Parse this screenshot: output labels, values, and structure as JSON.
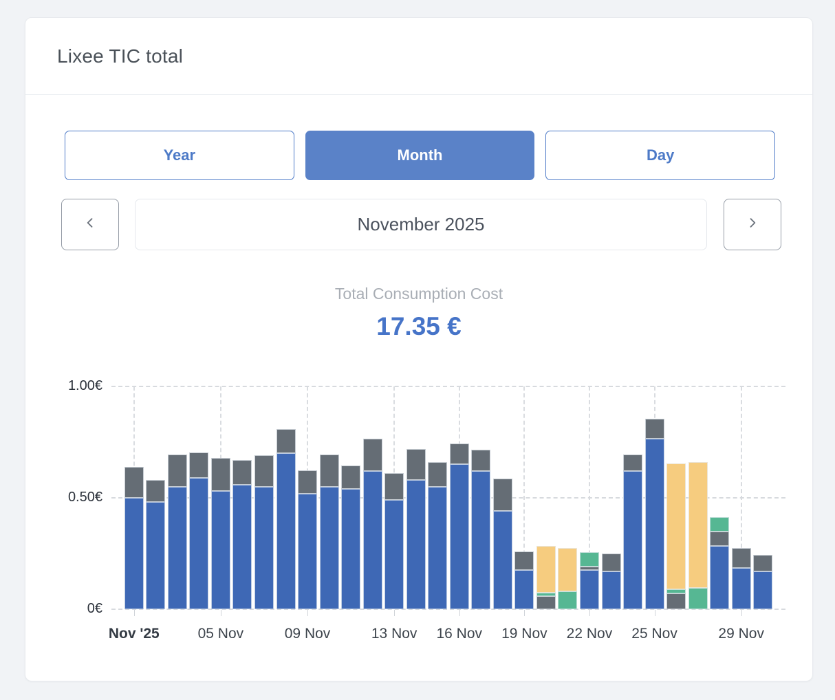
{
  "card": {
    "title": "Lixee TIC total"
  },
  "toolbar": {
    "buttons": [
      {
        "id": "year",
        "label": "Year",
        "active": false
      },
      {
        "id": "month",
        "label": "Month",
        "active": true
      },
      {
        "id": "day",
        "label": "Day",
        "active": false
      }
    ]
  },
  "date_nav": {
    "prev_icon": "chevron-left",
    "next_icon": "chevron-right",
    "label": "November 2025"
  },
  "summary": {
    "label": "Total Consumption Cost",
    "value": "17.35 €"
  },
  "colors": {
    "accent_blue": "#4674c8",
    "button_blue": "#4d7ac7",
    "button_blue_fill": "#5a82c8",
    "bar_blue": "#3e68b5",
    "bar_grey": "#656d75",
    "bar_green": "#56b793",
    "bar_yellow": "#f6cc7f",
    "grid": "#d7dade"
  },
  "chart_data": {
    "type": "bar",
    "stacked": true,
    "title": "Total Consumption Cost",
    "unit": "€",
    "xlabel": "",
    "ylabel": "",
    "ylim": [
      0,
      1
    ],
    "grid": true,
    "legend": false,
    "categories": [
      1,
      2,
      3,
      4,
      5,
      6,
      7,
      8,
      9,
      10,
      11,
      12,
      13,
      14,
      15,
      16,
      17,
      18,
      19,
      20,
      21,
      22,
      23,
      24,
      25,
      26,
      27,
      28,
      29,
      30
    ],
    "y_ticks": [
      {
        "value": 0,
        "label": "0€"
      },
      {
        "value": 0.5,
        "label": "0.50€"
      },
      {
        "value": 1,
        "label": "1.00€"
      }
    ],
    "x_ticks": [
      {
        "day": 1,
        "label": "Nov '25",
        "bold": true
      },
      {
        "day": 5,
        "label": "05 Nov"
      },
      {
        "day": 9,
        "label": "09 Nov"
      },
      {
        "day": 13,
        "label": "13 Nov"
      },
      {
        "day": 16,
        "label": "16 Nov"
      },
      {
        "day": 19,
        "label": "19 Nov"
      },
      {
        "day": 22,
        "label": "22 Nov"
      },
      {
        "day": 25,
        "label": "25 Nov"
      },
      {
        "day": 29,
        "label": "29 Nov"
      }
    ],
    "series": [
      {
        "name": "blue",
        "color": "#3e68b5",
        "values": [
          0.5,
          0.48,
          0.55,
          0.59,
          0.53,
          0.56,
          0.55,
          0.7,
          0.52,
          0.55,
          0.54,
          0.62,
          0.49,
          0.58,
          0.55,
          0.65,
          0.62,
          0.44,
          0.175,
          0,
          0,
          0.175,
          0.17,
          0.62,
          0.765,
          0,
          0,
          0.285,
          0.185,
          0.17
        ]
      },
      {
        "name": "grey",
        "color": "#656d75",
        "values": [
          0.14,
          0.1,
          0.145,
          0.115,
          0.15,
          0.11,
          0.14,
          0.11,
          0.105,
          0.145,
          0.105,
          0.145,
          0.12,
          0.14,
          0.11,
          0.095,
          0.095,
          0.145,
          0.085,
          0.06,
          0,
          0.015,
          0.08,
          0.075,
          0.09,
          0.07,
          0,
          0.065,
          0.09,
          0.075
        ]
      },
      {
        "name": "green",
        "color": "#56b793",
        "values": [
          0,
          0,
          0,
          0,
          0,
          0,
          0,
          0,
          0,
          0,
          0,
          0,
          0,
          0,
          0,
          0,
          0,
          0,
          0,
          0.015,
          0.08,
          0.065,
          0,
          0,
          0,
          0.02,
          0.095,
          0.065,
          0,
          0
        ]
      },
      {
        "name": "yellow",
        "color": "#f6cc7f",
        "values": [
          0,
          0,
          0,
          0,
          0,
          0,
          0,
          0,
          0,
          0,
          0,
          0,
          0,
          0,
          0,
          0,
          0,
          0,
          0,
          0.21,
          0.195,
          0,
          0,
          0,
          0,
          0.565,
          0.565,
          0,
          0,
          0
        ]
      }
    ]
  }
}
